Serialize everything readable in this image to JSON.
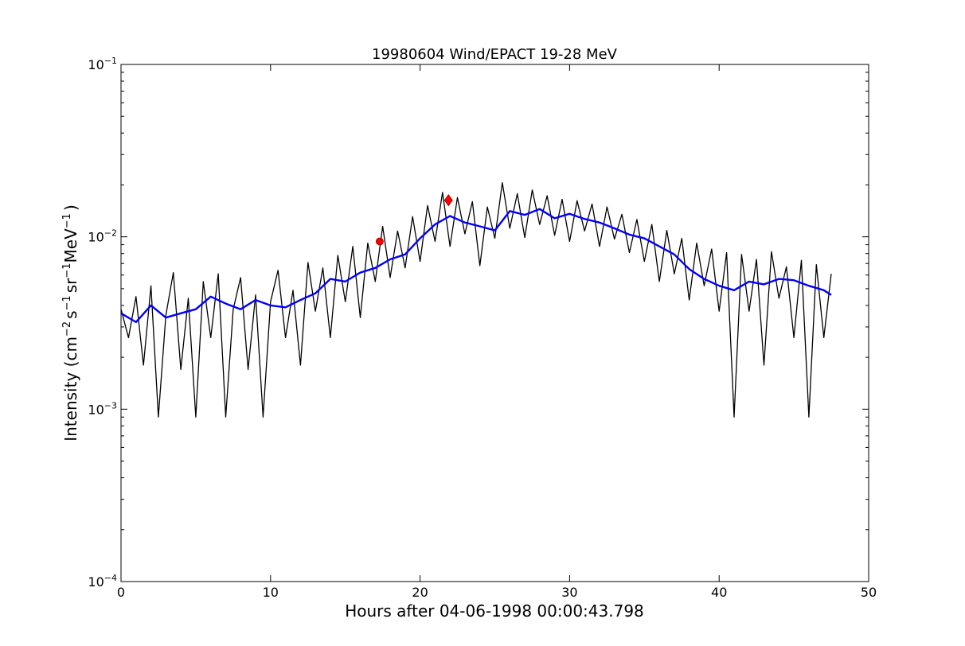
{
  "chart_data": {
    "type": "line",
    "title": "19980604 Wind/EPACT 19-28 MeV",
    "xlabel": "Hours after 04-06-1998 00:00:43.798",
    "ylabel_main": "Intensity (cm",
    "ylabel_sup1": "−2",
    "ylabel_mid1": "s",
    "ylabel_sup2": "−1",
    "ylabel_mid2": "sr",
    "ylabel_sup3": "−1",
    "ylabel_mid3": "MeV",
    "ylabel_sup4": "−1",
    "ylabel_end": ")",
    "xlim": [
      0,
      50
    ],
    "ylim": [
      0.0001,
      0.1
    ],
    "yscale": "log",
    "grid": false,
    "xticks": [
      {
        "value": 0,
        "label": "0"
      },
      {
        "value": 10,
        "label": "10"
      },
      {
        "value": 20,
        "label": "20"
      },
      {
        "value": 30,
        "label": "30"
      },
      {
        "value": 40,
        "label": "40"
      },
      {
        "value": 50,
        "label": "50"
      }
    ],
    "yticks": [
      {
        "value": 0.0001,
        "base": "10",
        "exp": "−4"
      },
      {
        "value": 0.001,
        "base": "10",
        "exp": "−3"
      },
      {
        "value": 0.01,
        "base": "10",
        "exp": "−2"
      },
      {
        "value": 0.1,
        "base": "10",
        "exp": "−1"
      }
    ],
    "series": [
      {
        "color": "#000000",
        "x": [
          0,
          0.5,
          1,
          1.5,
          2,
          2.5,
          3,
          3.5,
          4,
          4.5,
          5,
          5.5,
          6,
          6.5,
          7,
          7.5,
          8,
          8.5,
          9,
          9.5,
          10,
          10.5,
          11,
          11.5,
          12,
          12.5,
          13,
          13.5,
          14,
          14.5,
          15,
          15.5,
          16,
          16.5,
          17,
          17.5,
          18,
          18.5,
          19,
          19.5,
          20,
          20.5,
          21,
          21.5,
          22,
          22.5,
          23,
          23.5,
          24,
          24.5,
          25,
          25.5,
          26,
          26.5,
          27,
          27.5,
          28,
          28.5,
          29,
          29.5,
          30,
          30.5,
          31,
          31.5,
          32,
          32.5,
          33,
          33.5,
          34,
          34.5,
          35,
          35.5,
          36,
          36.5,
          37,
          37.5,
          38,
          38.5,
          39,
          39.5,
          40,
          40.5,
          41,
          41.5,
          42,
          42.5,
          43,
          43.5,
          44,
          44.5,
          45,
          45.5,
          46,
          46.5,
          47,
          47.5
        ],
        "y": [
          0.0038,
          0.0026,
          0.0045,
          0.0018,
          0.0052,
          0.0009,
          0.0035,
          0.0062,
          0.0017,
          0.0044,
          0.0009,
          0.0055,
          0.0026,
          0.0061,
          0.0009,
          0.0038,
          0.0058,
          0.0017,
          0.0046,
          0.0009,
          0.0042,
          0.0064,
          0.0026,
          0.0049,
          0.0018,
          0.0071,
          0.0037,
          0.0066,
          0.0026,
          0.0078,
          0.0042,
          0.0088,
          0.0034,
          0.0092,
          0.0055,
          0.0115,
          0.0058,
          0.0108,
          0.0066,
          0.0131,
          0.0072,
          0.0152,
          0.0094,
          0.0181,
          0.0088,
          0.0169,
          0.0104,
          0.016,
          0.0068,
          0.0149,
          0.0098,
          0.0206,
          0.0112,
          0.0178,
          0.0099,
          0.0187,
          0.0118,
          0.0173,
          0.0102,
          0.0165,
          0.0094,
          0.0162,
          0.0108,
          0.0155,
          0.0088,
          0.0149,
          0.0097,
          0.0135,
          0.0081,
          0.0126,
          0.0072,
          0.0118,
          0.0055,
          0.0109,
          0.0061,
          0.0098,
          0.0043,
          0.0092,
          0.0052,
          0.0085,
          0.0037,
          0.0081,
          0.0009,
          0.0079,
          0.0037,
          0.0074,
          0.0018,
          0.0082,
          0.0044,
          0.0067,
          0.0026,
          0.0073,
          0.0009,
          0.0069,
          0.0026,
          0.0061
        ]
      },
      {
        "color": "#0000ff",
        "x": [
          0,
          1,
          2,
          3,
          4,
          5,
          6,
          7,
          8,
          9,
          10,
          11,
          12,
          13,
          14,
          15,
          16,
          17,
          18,
          19,
          20,
          21,
          22,
          23,
          24,
          25,
          26,
          27,
          28,
          29,
          30,
          31,
          32,
          33,
          34,
          35,
          36,
          37,
          38,
          39,
          40,
          41,
          42,
          43,
          44,
          45,
          46,
          47,
          47.5
        ],
        "y": [
          0.0036,
          0.0032,
          0.004,
          0.0034,
          0.0036,
          0.0038,
          0.0045,
          0.0041,
          0.0038,
          0.0043,
          0.004,
          0.0039,
          0.0043,
          0.0047,
          0.0057,
          0.0055,
          0.0062,
          0.0066,
          0.0074,
          0.0079,
          0.0098,
          0.0118,
          0.0132,
          0.0121,
          0.0115,
          0.0109,
          0.0141,
          0.0134,
          0.0145,
          0.0128,
          0.0136,
          0.0127,
          0.0121,
          0.0112,
          0.0103,
          0.0098,
          0.0088,
          0.0079,
          0.0065,
          0.0057,
          0.0052,
          0.0049,
          0.0055,
          0.0053,
          0.0057,
          0.0056,
          0.0052,
          0.0049,
          0.0046
        ]
      }
    ],
    "markers": [
      {
        "x": 17.3,
        "y": 0.0094,
        "color": "#ff0000",
        "shape": "circle"
      },
      {
        "x": 21.9,
        "y": 0.0163,
        "color": "#ff0000",
        "shape": "diamond"
      }
    ]
  }
}
